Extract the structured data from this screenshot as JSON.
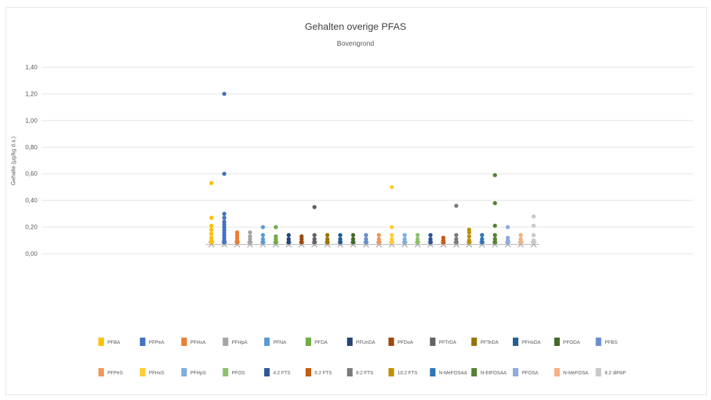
{
  "chart_data": {
    "type": "scatter",
    "title": "Gehalten overige PFAS",
    "subtitle": "Bovengrond",
    "ylabel": "Gehalte (µg/kg d.s.)",
    "ylim": [
      0,
      1.4
    ],
    "yticks": [
      "0,00",
      "0,20",
      "0,40",
      "0,60",
      "0,80",
      "1,00",
      "1,20",
      "1,40"
    ],
    "grid": true,
    "legend_position": "bottom",
    "baseline_value": 0.07,
    "series": [
      {
        "name": "PFBA",
        "color": "#FFC000",
        "values": [
          0.53,
          0.27,
          0.21,
          0.18,
          0.15,
          0.12,
          0.1,
          0.09,
          0.08
        ]
      },
      {
        "name": "PFPeA",
        "color": "#4472C4",
        "values": [
          1.2,
          0.6,
          0.3,
          0.27,
          0.24,
          0.22,
          0.2,
          0.18,
          0.16,
          0.14,
          0.12,
          0.1,
          0.09,
          0.08
        ]
      },
      {
        "name": "PFHxA",
        "color": "#ED7D31",
        "values": [
          0.16,
          0.14,
          0.12,
          0.1,
          0.09,
          0.08
        ]
      },
      {
        "name": "PFHpA",
        "color": "#A5A5A5",
        "values": [
          0.16,
          0.13,
          0.11,
          0.09,
          0.08
        ]
      },
      {
        "name": "PFNA",
        "color": "#5B9BD5",
        "values": [
          0.2,
          0.14,
          0.11,
          0.09,
          0.08
        ]
      },
      {
        "name": "PFDA",
        "color": "#70AD47",
        "values": [
          0.2,
          0.13,
          0.11,
          0.09,
          0.08
        ]
      },
      {
        "name": "PFUnDA",
        "color": "#264478",
        "values": [
          0.14,
          0.11,
          0.09,
          0.08
        ]
      },
      {
        "name": "PFDoA",
        "color": "#9E480E",
        "values": [
          0.13,
          0.11,
          0.09,
          0.08
        ]
      },
      {
        "name": "PFTrDA",
        "color": "#636363",
        "values": [
          0.35,
          0.14,
          0.11,
          0.09,
          0.08
        ]
      },
      {
        "name": "PFTeDA",
        "color": "#997300",
        "values": [
          0.14,
          0.11,
          0.09,
          0.08
        ]
      },
      {
        "name": "PFHxDA",
        "color": "#255E91",
        "values": [
          0.14,
          0.11,
          0.09,
          0.08
        ]
      },
      {
        "name": "PFODA",
        "color": "#43682B",
        "values": [
          0.14,
          0.11,
          0.09,
          0.08
        ]
      },
      {
        "name": "PFBS",
        "color": "#698ED0",
        "values": [
          0.14,
          0.11,
          0.09,
          0.08
        ]
      },
      {
        "name": "PFPeS",
        "color": "#F1975A",
        "values": [
          0.14,
          0.11,
          0.09,
          0.08
        ]
      },
      {
        "name": "PFHxS",
        "color": "#FFCD33",
        "values": [
          0.5,
          0.2,
          0.14,
          0.11,
          0.09,
          0.08
        ]
      },
      {
        "name": "PFHpS",
        "color": "#7CAFDD",
        "values": [
          0.14,
          0.11,
          0.09,
          0.08
        ]
      },
      {
        "name": "PFOS",
        "color": "#8CC168",
        "values": [
          0.14,
          0.11,
          0.09,
          0.08
        ]
      },
      {
        "name": "4:2 FTS",
        "color": "#2F5597",
        "values": [
          0.14,
          0.11,
          0.09,
          0.08
        ]
      },
      {
        "name": "6:2 FTS",
        "color": "#C55A11",
        "values": [
          0.12,
          0.1,
          0.08
        ]
      },
      {
        "name": "8:2 FTS",
        "color": "#7B7B7B",
        "values": [
          0.36,
          0.14,
          0.11,
          0.09,
          0.08
        ]
      },
      {
        "name": "10:2 FTS",
        "color": "#BF9000",
        "values": [
          0.18,
          0.16,
          0.13,
          0.1,
          0.08
        ]
      },
      {
        "name": "N-MeFOSAA",
        "color": "#2E75B6",
        "values": [
          0.14,
          0.11,
          0.09,
          0.08
        ]
      },
      {
        "name": "N-EtFOSAA",
        "color": "#548235",
        "values": [
          0.59,
          0.38,
          0.21,
          0.14,
          0.11,
          0.09,
          0.08
        ]
      },
      {
        "name": "PFOSA",
        "color": "#8FAADC",
        "values": [
          0.2,
          0.12,
          0.1,
          0.08
        ]
      },
      {
        "name": "N-MeFOSA",
        "color": "#F4B183",
        "values": [
          0.14,
          0.11,
          0.09,
          0.08
        ]
      },
      {
        "name": "8:2 diPAP",
        "color": "#C9C9C9",
        "values": [
          0.28,
          0.21,
          0.14,
          0.1,
          0.08
        ]
      }
    ]
  }
}
